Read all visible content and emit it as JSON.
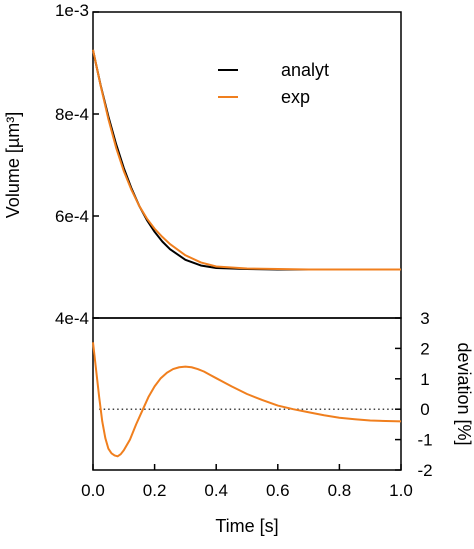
{
  "chart_data": [
    {
      "type": "line",
      "ylabel": "Volume [µm³]",
      "ylim": [
        0.0004,
        0.001
      ],
      "xlim": [
        0,
        1
      ],
      "y_tick_values": [
        0.0004,
        0.0006,
        0.0008,
        0.001
      ],
      "y_ticks": [
        "4e-4",
        "6e-4",
        "8e-4",
        "1e-3"
      ],
      "legend": {
        "placement": "top-right"
      },
      "x": [
        0,
        0.025,
        0.05,
        0.075,
        0.1,
        0.125,
        0.15,
        0.175,
        0.2,
        0.225,
        0.25,
        0.3,
        0.35,
        0.4,
        0.5,
        0.6,
        0.7,
        0.8,
        0.9,
        1.0
      ],
      "series": [
        {
          "name": "analyt",
          "color": "#000000",
          "values": [
            0.000925,
            0.000856,
            0.000795,
            0.000741,
            0.000694,
            0.000654,
            0.00062,
            0.000592,
            0.000569,
            0.00055,
            0.000535,
            0.000514,
            0.000503,
            0.000498,
            0.000496,
            0.000495,
            0.000495,
            0.000495,
            0.000495,
            0.000495
          ]
        },
        {
          "name": "exp",
          "color": "#f07f1e",
          "values": [
            0.000926,
            0.000855,
            0.00079,
            0.000734,
            0.000688,
            0.000651,
            0.00062,
            0.000595,
            0.000575,
            0.000559,
            0.000545,
            0.000523,
            0.000509,
            0.000501,
            0.000497,
            0.000496,
            0.000495,
            0.000495,
            0.000495,
            0.000495
          ]
        }
      ]
    },
    {
      "type": "line",
      "xlabel": "Time [s]",
      "ylabel": "deviation [%]",
      "xlim": [
        0,
        1
      ],
      "ylim": [
        -2,
        3
      ],
      "x_tick_values": [
        0,
        0.2,
        0.4,
        0.6,
        0.8,
        1.0
      ],
      "x_ticks": [
        "0.0",
        "0.2",
        "0.4",
        "0.6",
        "0.8",
        "1.0"
      ],
      "y_tick_values": [
        -2,
        -1,
        0,
        1,
        2,
        3
      ],
      "y_ticks": [
        "-2",
        "-1",
        "0",
        "1",
        "2",
        "3"
      ],
      "reference_line": {
        "y": 0,
        "style": "dotted"
      },
      "x": [
        0,
        0.01,
        0.02,
        0.03,
        0.04,
        0.05,
        0.06,
        0.07,
        0.08,
        0.09,
        0.1,
        0.12,
        0.14,
        0.16,
        0.18,
        0.2,
        0.22,
        0.24,
        0.26,
        0.28,
        0.3,
        0.32,
        0.34,
        0.36,
        0.38,
        0.4,
        0.45,
        0.5,
        0.55,
        0.6,
        0.65,
        0.7,
        0.75,
        0.8,
        0.85,
        0.9,
        0.95,
        1.0
      ],
      "series": [
        {
          "color": "#f07f1e",
          "values": [
            2.2,
            1.3,
            0.4,
            -0.4,
            -0.95,
            -1.3,
            -1.45,
            -1.52,
            -1.55,
            -1.48,
            -1.35,
            -1.0,
            -0.5,
            -0.05,
            0.4,
            0.75,
            1.02,
            1.2,
            1.32,
            1.38,
            1.4,
            1.38,
            1.32,
            1.24,
            1.13,
            1.02,
            0.75,
            0.5,
            0.3,
            0.12,
            0.0,
            -0.1,
            -0.2,
            -0.28,
            -0.33,
            -0.37,
            -0.39,
            -0.4
          ]
        }
      ]
    }
  ]
}
